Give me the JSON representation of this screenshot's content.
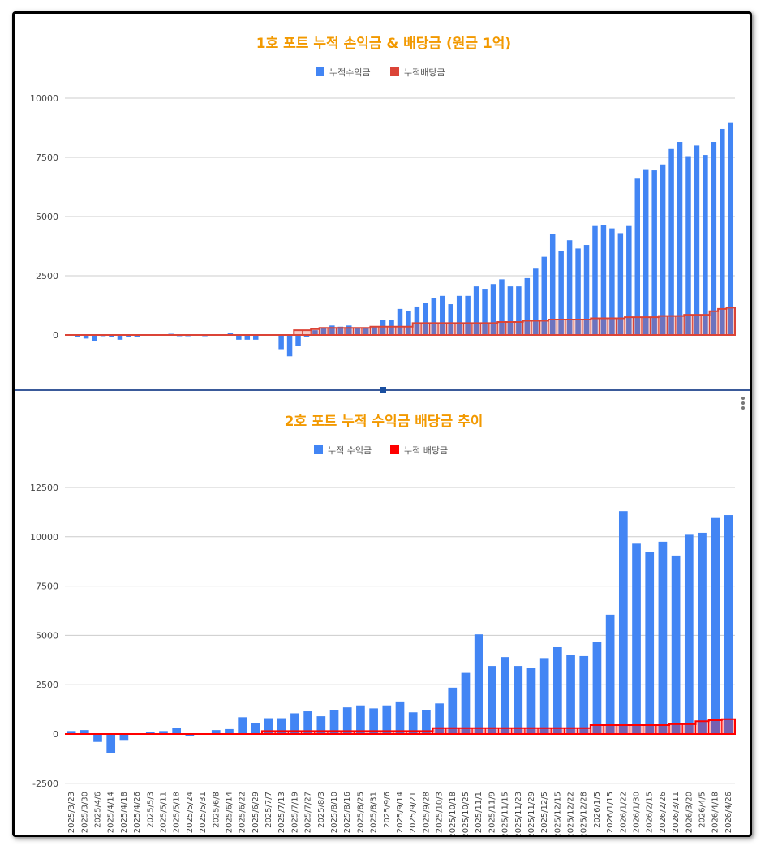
{
  "charts": [
    {
      "title": "1호 포트 누적 손익금 & 배당금 (원금 1억)",
      "legend": [
        "누적수익금",
        "누적배당금"
      ],
      "yticks": [
        "10000",
        "7500",
        "5000",
        "2500",
        "0"
      ]
    },
    {
      "title": "2호 포트 누적 수익금 배당금 추이",
      "legend": [
        "누적 수익금",
        "누적 배당금"
      ],
      "yticks": [
        "12500",
        "10000",
        "7500",
        "5000",
        "2500",
        "0",
        "-2500"
      ]
    }
  ],
  "chart_data": [
    {
      "type": "bar",
      "title": "1호 포트 누적 손익금 & 배당금 (원금 1억)",
      "ylim": [
        -1000,
        10000
      ],
      "grid": true,
      "legend_position": "top",
      "colors": {
        "profit": "#4285f4",
        "dividend": "#db4437"
      },
      "series": [
        {
          "name": "누적수익금",
          "values": [
            0,
            -100,
            -150,
            -250,
            -50,
            -100,
            -200,
            -100,
            -100,
            0,
            0,
            0,
            50,
            -50,
            -50,
            0,
            -50,
            0,
            0,
            100,
            -200,
            -200,
            -200,
            0,
            0,
            -600,
            -900,
            -450,
            -100,
            200,
            300,
            400,
            350,
            400,
            300,
            300,
            350,
            650,
            650,
            1100,
            1000,
            1200,
            1350,
            1550,
            1650,
            1300,
            1650,
            1650,
            2050,
            1950,
            2150,
            2350,
            2050,
            2050,
            2400,
            2800,
            3300,
            4250,
            3550,
            4000,
            3650,
            3800,
            4600,
            4650,
            4500,
            4300,
            4600,
            6600,
            7000,
            6950,
            7200,
            7850,
            8150,
            7550,
            8000,
            7600,
            8150,
            8700,
            8950
          ]
        },
        {
          "name": "누적배당금",
          "values": [
            0,
            0,
            0,
            0,
            0,
            0,
            0,
            0,
            0,
            0,
            0,
            0,
            0,
            0,
            0,
            0,
            0,
            0,
            0,
            0,
            0,
            0,
            0,
            0,
            0,
            0,
            0,
            200,
            200,
            250,
            300,
            300,
            300,
            300,
            300,
            300,
            350,
            350,
            350,
            350,
            350,
            500,
            500,
            500,
            500,
            500,
            500,
            500,
            500,
            500,
            500,
            550,
            550,
            550,
            600,
            600,
            600,
            650,
            650,
            650,
            650,
            650,
            700,
            700,
            700,
            700,
            750,
            750,
            750,
            750,
            800,
            800,
            800,
            850,
            850,
            850,
            1000,
            1100,
            1150
          ]
        }
      ]
    },
    {
      "type": "bar",
      "title": "2호 포트 누적 수익금 배당금 추이",
      "ylim": [
        -2500,
        12500
      ],
      "grid": true,
      "legend_position": "top",
      "colors": {
        "profit": "#4285f4",
        "dividend": "#ff0000"
      },
      "categories": [
        "2025/3/23",
        "2025/3/30",
        "2025/4/6",
        "2025/4/14",
        "2025/4/18",
        "2025/4/26",
        "2025/5/3",
        "2025/5/11",
        "2025/5/18",
        "2025/5/24",
        "2025/5/31",
        "2025/6/8",
        "2025/6/14",
        "2025/6/22",
        "2025/6/29",
        "2025/7/7",
        "2025/7/13",
        "2025/7/19",
        "2025/7/27",
        "2025/8/3",
        "2025/8/10",
        "2025/8/16",
        "2025/8/25",
        "2025/8/31",
        "2025/9/6",
        "2025/9/14",
        "2025/9/21",
        "2025/9/28",
        "2025/10/3",
        "2025/10/18",
        "2025/10/25",
        "2025/11/1",
        "2025/11/9",
        "2025/11/15",
        "2025/11/23",
        "2025/11/29",
        "2025/12/5",
        "2025/12/15",
        "2025/12/22",
        "2025/12/28",
        "2026/1/5",
        "2026/1/15",
        "2026/1/22",
        "2026/1/30",
        "2026/2/15",
        "2026/2/26",
        "2026/3/11",
        "2026/3/20",
        "2026/4/5",
        "2026/4/18",
        "2026/4/26"
      ],
      "series": [
        {
          "name": "누적 수익금",
          "values": [
            150,
            200,
            -400,
            -950,
            -300,
            0,
            100,
            150,
            300,
            -100,
            0,
            200,
            250,
            850,
            550,
            800,
            800,
            1050,
            1150,
            900,
            1200,
            1350,
            1450,
            1300,
            1450,
            1650,
            1100,
            1200,
            1550,
            2350,
            3100,
            5050,
            3450,
            3900,
            3450,
            3350,
            3850,
            4400,
            4000,
            3950,
            4650,
            6050,
            11300,
            9650,
            9250,
            9750,
            9050,
            10100,
            10200,
            10950,
            11100
          ]
        },
        {
          "name": "누적 배당금",
          "values": [
            0,
            0,
            0,
            0,
            0,
            0,
            0,
            0,
            0,
            0,
            0,
            0,
            0,
            0,
            0,
            150,
            150,
            150,
            150,
            150,
            150,
            150,
            150,
            150,
            150,
            150,
            150,
            150,
            300,
            300,
            300,
            300,
            300,
            300,
            300,
            300,
            300,
            300,
            300,
            300,
            450,
            450,
            450,
            450,
            450,
            450,
            500,
            500,
            650,
            700,
            750
          ]
        }
      ]
    }
  ]
}
